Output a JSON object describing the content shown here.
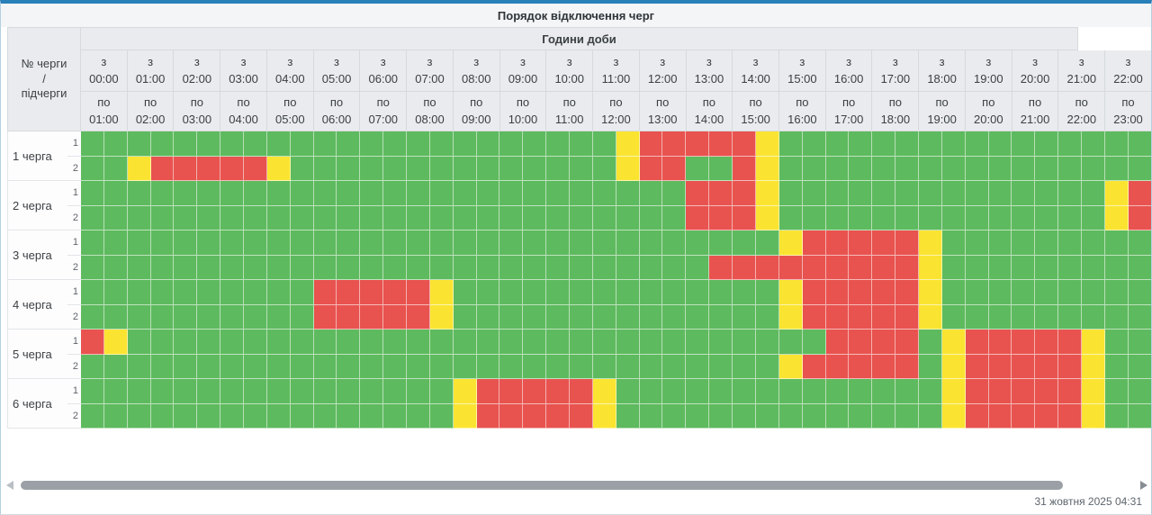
{
  "title": "Порядок відключення черг",
  "table": {
    "corner_lines": [
      "№ черги",
      "/",
      "підчерги"
    ],
    "group_header": "Години доби",
    "from_prefix": "з",
    "to_prefix": "по",
    "columns": [
      {
        "from": "00:00",
        "to": "01:00"
      },
      {
        "from": "01:00",
        "to": "02:00"
      },
      {
        "from": "02:00",
        "to": "03:00"
      },
      {
        "from": "03:00",
        "to": "04:00"
      },
      {
        "from": "04:00",
        "to": "05:00"
      },
      {
        "from": "05:00",
        "to": "06:00"
      },
      {
        "from": "06:00",
        "to": "07:00"
      },
      {
        "from": "07:00",
        "to": "08:00"
      },
      {
        "from": "08:00",
        "to": "09:00"
      },
      {
        "from": "09:00",
        "to": "10:00"
      },
      {
        "from": "10:00",
        "to": "11:00"
      },
      {
        "from": "11:00",
        "to": "12:00"
      },
      {
        "from": "12:00",
        "to": "13:00"
      },
      {
        "from": "13:00",
        "to": "14:00"
      },
      {
        "from": "14:00",
        "to": "15:00"
      },
      {
        "from": "15:00",
        "to": "16:00"
      },
      {
        "from": "16:00",
        "to": "17:00"
      },
      {
        "from": "17:00",
        "to": "18:00"
      },
      {
        "from": "18:00",
        "to": "19:00"
      },
      {
        "from": "19:00",
        "to": "20:00"
      },
      {
        "from": "20:00",
        "to": "21:00"
      },
      {
        "from": "21:00",
        "to": "22:00"
      },
      {
        "from": "22:00",
        "to": "23:00"
      }
    ],
    "rows": [
      {
        "label": "1 черга",
        "subrows": [
          {
            "label": "1",
            "cells": "GGGGGGGGGGGGGGGGGGGGGGGYRRRRRYGGGGGGGGGGGGGGGG"
          },
          {
            "label": "2",
            "cells": "GGYRRRRRYGGGGGGGGGGGGGGYRRGGRYGGGGGGGGGGGGGGGG"
          }
        ]
      },
      {
        "label": "2 черга",
        "subrows": [
          {
            "label": "1",
            "cells": "GGGGGGGGGGGGGGGGGGGGGGGGGGRRRYGGGGGGGGGGGGGGYR"
          },
          {
            "label": "2",
            "cells": "GGGGGGGGGGGGGGGGGGGGGGGGGGRRRYGGGGGGGGGGGGGGYR"
          }
        ]
      },
      {
        "label": "3 черга",
        "subrows": [
          {
            "label": "1",
            "cells": "GGGGGGGGGGGGGGGGGGGGGGGGGGGGGGYRRRRRYGGGGGGGGG"
          },
          {
            "label": "2",
            "cells": "GGGGGGGGGGGGGGGGGGGGGGGGGGGRRRRRRRRRYGGGGGGGGG"
          }
        ]
      },
      {
        "label": "4 черга",
        "subrows": [
          {
            "label": "1",
            "cells": "GGGGGGGGGGRRRRRYGGGGGGGGGGGGGGYRRRRRYGGGGGGGGG"
          },
          {
            "label": "2",
            "cells": "GGGGGGGGGGRRRRRYGGGGGGGGGGGGGGYRRRRRYGGGGGGGGG"
          }
        ]
      },
      {
        "label": "5 черга",
        "subrows": [
          {
            "label": "1",
            "cells": "RYGGGGGGGGGGGGGGGGGGGGGGGGGGGGGGRRRRGYRRRRRYGG"
          },
          {
            "label": "2",
            "cells": "GGGGGGGGGGGGGGGGGGGGGGGGGGGGGGYRRRRRGYRRRRRYGG"
          }
        ]
      },
      {
        "label": "6 черга",
        "subrows": [
          {
            "label": "1",
            "cells": "GGGGGGGGGGGGGGGGYRRRRRYGGGGGGGGGGGGGGYRRRRRYGG"
          },
          {
            "label": "2",
            "cells": "GGGGGGGGGGGGGGGGYRRRRRYGGGGGGGGGGGGGGYRRRRRYGG"
          }
        ]
      }
    ]
  },
  "cell_colors": {
    "G": "#5eba5e",
    "R": "#e8534f",
    "Y": "#fbe431"
  },
  "colors": {
    "accent_blue": "#2980b9",
    "header_bg": "#e9ebee"
  },
  "icons": {
    "scroll_left": "left-triangle",
    "scroll_right": "right-triangle"
  },
  "footer": {
    "timestamp": "31 жовтня 2025 04:31"
  }
}
